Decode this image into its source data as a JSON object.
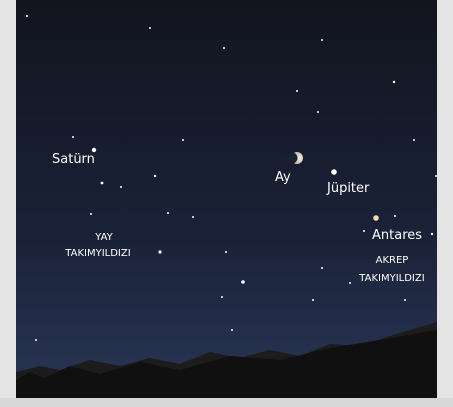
{
  "objects": [
    {
      "label": "Satürn"
    },
    {
      "label": "Ay"
    },
    {
      "label": "Jüpiter"
    },
    {
      "label": "Antares"
    }
  ],
  "constellations": [
    {
      "lines": [
        "YAY",
        "TAKIMYILDIZI"
      ]
    },
    {
      "lines": [
        "AKREP",
        "TAKIMYILDIZI"
      ]
    }
  ]
}
